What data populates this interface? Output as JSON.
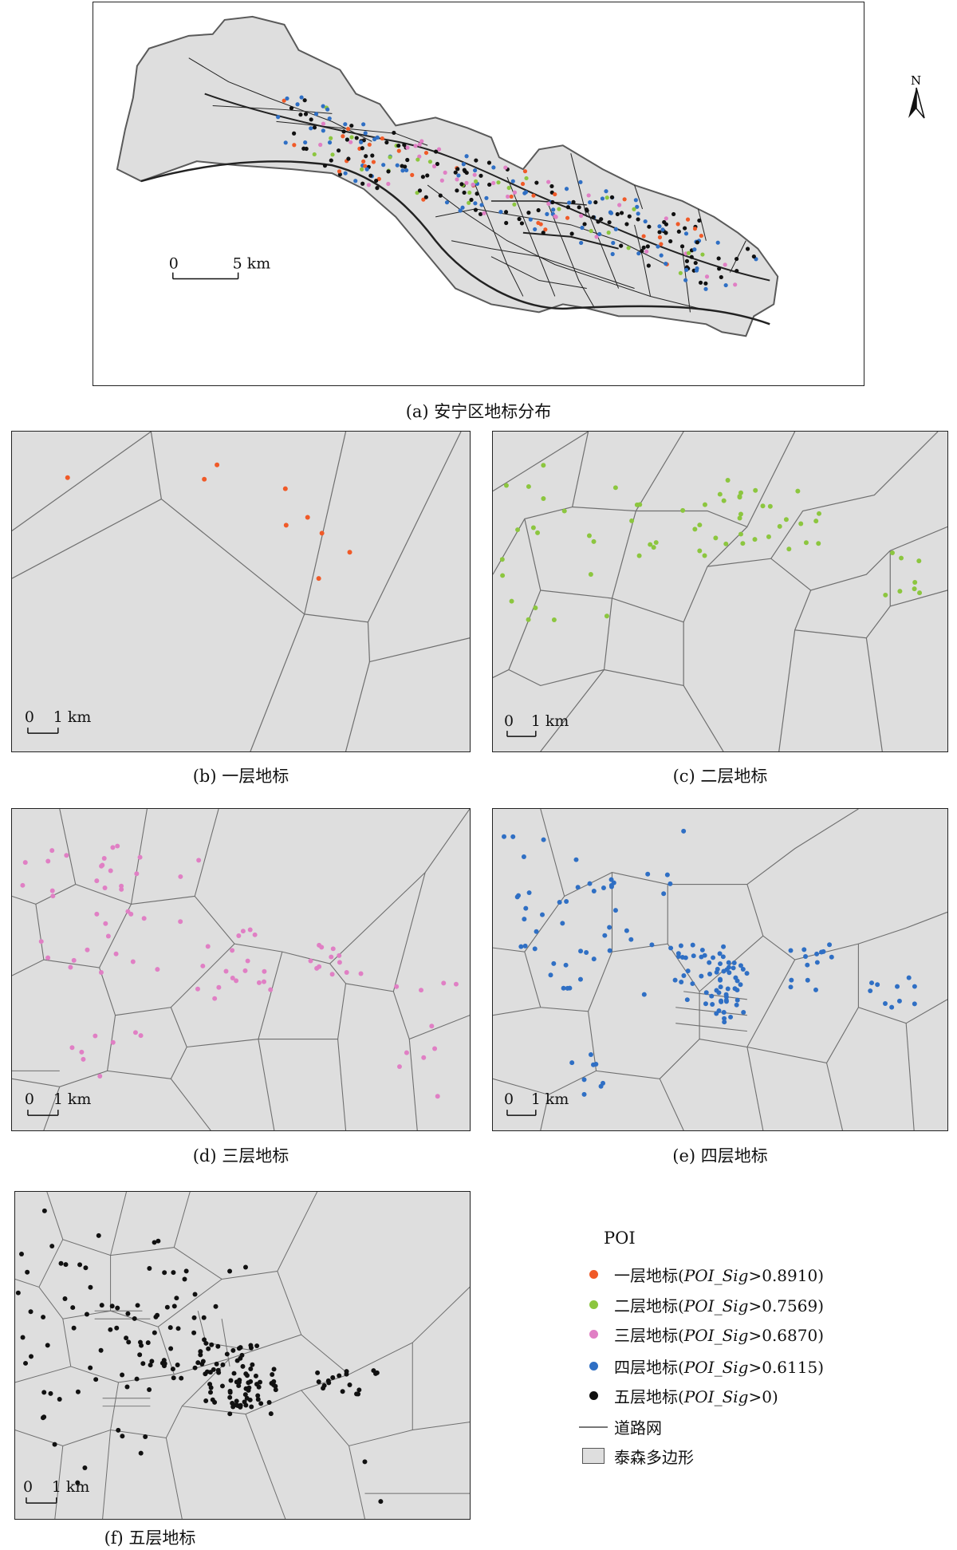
{
  "colors": {
    "level1": "#f05a28",
    "level2": "#8cc63f",
    "level3": "#e07fc4",
    "level4": "#2f6fc4",
    "level5": "#111111",
    "polygon_fill": "#dedede",
    "polygon_edge": "#6f6f6f",
    "road": "#7a7a7a"
  },
  "north_arrow": {
    "label": "N",
    "icon": "north-arrow-icon"
  },
  "panel_a": {
    "caption": "(a) 安宁区地标分布",
    "scale_zero": "0",
    "scale_label": "5 km"
  },
  "panel_b": {
    "caption": "(b) 一层地标",
    "scale_zero": "0",
    "scale_label": "1 km"
  },
  "panel_c": {
    "caption": "(c) 二层地标",
    "scale_zero": "0",
    "scale_label": "1 km"
  },
  "panel_d": {
    "caption": "(d) 三层地标",
    "scale_zero": "0",
    "scale_label": "1 km"
  },
  "panel_e": {
    "caption": "(e) 四层地标",
    "scale_zero": "0",
    "scale_label": "1 km"
  },
  "panel_f": {
    "caption": "(f) 五层地标",
    "scale_zero": "0",
    "scale_label": "1 km"
  },
  "legend": {
    "title": "POI",
    "items": [
      {
        "label_pre": "一层地标(",
        "label_var": "POI_Sig",
        "label_post": ">0.8910)",
        "color": "#f05a28"
      },
      {
        "label_pre": "二层地标(",
        "label_var": "POI_Sig",
        "label_post": ">0.7569)",
        "color": "#8cc63f"
      },
      {
        "label_pre": "三层地标(",
        "label_var": "POI_Sig",
        "label_post": ">0.6870)",
        "color": "#e07fc4"
      },
      {
        "label_pre": "四层地标(",
        "label_var": "POI_Sig",
        "label_post": ">0.6115)",
        "color": "#2f6fc4"
      },
      {
        "label_pre": "五层地标(",
        "label_var": "POI_Sig",
        "label_post": ">0)",
        "color": "#111111"
      }
    ],
    "road_label": "道路网",
    "polygon_label": "泰森多边形"
  }
}
